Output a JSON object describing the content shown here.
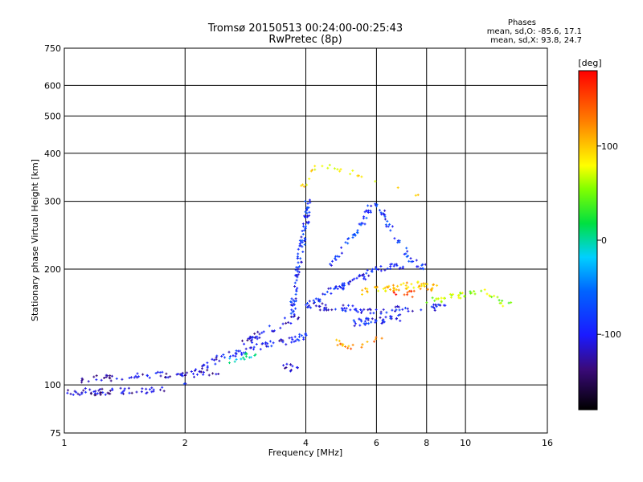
{
  "chart_data": {
    "type": "scatter",
    "title_line1": "Tromsø 20150513 00:24:00-00:25:43",
    "title_line2": "RwPretec (8p)",
    "xlabel": "Frequency [MHz]",
    "ylabel": "Stationary phase Virtual Height [km]",
    "x_scale": "log",
    "y_scale": "log",
    "xlim": [
      1,
      16
    ],
    "ylim": [
      75,
      750
    ],
    "x_ticks": [
      1,
      2,
      4,
      6,
      8,
      10,
      16
    ],
    "x_tick_labels": [
      "1",
      "2",
      "4",
      "6",
      "8",
      "10",
      "16"
    ],
    "y_ticks": [
      75,
      100,
      200,
      300,
      400,
      500,
      600,
      750
    ],
    "y_tick_labels": [
      "75",
      "100",
      "200",
      "300",
      "400",
      "500",
      "600",
      "750"
    ],
    "grid": true,
    "phase_panel": {
      "heading": "Phases",
      "line_o": "mean, sd,O: -85.6, 17.1",
      "line_x": "mean, sd,X:  93.8, 24.7"
    },
    "colorbar": {
      "label": "[deg]",
      "range": [
        -180,
        180
      ],
      "ticks": [
        100,
        0,
        -100
      ],
      "tick_labels": [
        "100",
        "0",
        "-100"
      ]
    },
    "clusters": [
      {
        "trace": [
          [
            1.0,
            96
          ],
          [
            1.3,
            96
          ],
          [
            1.8,
            97
          ]
        ],
        "phase": -125,
        "n": 60
      },
      {
        "trace": [
          [
            1.1,
            103
          ],
          [
            1.4,
            105
          ],
          [
            1.7,
            106
          ],
          [
            2.0,
            107
          ],
          [
            2.4,
            108
          ]
        ],
        "phase": -120,
        "n": 65
      },
      {
        "trace": [
          [
            2.0,
            102
          ],
          [
            2.2,
            110
          ],
          [
            2.4,
            117
          ],
          [
            2.8,
            122
          ],
          [
            3.2,
            127
          ],
          [
            3.6,
            130
          ],
          [
            4.0,
            134
          ]
        ],
        "phase": -110,
        "n": 80
      },
      {
        "trace": [
          [
            2.8,
            128
          ],
          [
            3.0,
            134
          ],
          [
            3.3,
            140
          ],
          [
            3.6,
            147
          ],
          [
            3.8,
            150
          ]
        ],
        "phase": -120,
        "n": 40
      },
      {
        "trace": [
          [
            2.5,
            115
          ],
          [
            2.8,
            118
          ],
          [
            3.0,
            121
          ]
        ],
        "phase": -10,
        "n": 15
      },
      {
        "trace": [
          [
            3.5,
            112
          ],
          [
            3.8,
            110
          ]
        ],
        "phase": -115,
        "n": 12
      },
      {
        "trace": [
          [
            3.7,
            155
          ],
          [
            3.8,
            190
          ],
          [
            3.9,
            230
          ],
          [
            4.0,
            260
          ],
          [
            4.05,
            300
          ]
        ],
        "phase": -100,
        "n": 90
      },
      {
        "trace": [
          [
            4.0,
            160
          ],
          [
            4.6,
            175
          ],
          [
            5.2,
            185
          ],
          [
            6.0,
            200
          ],
          [
            7.0,
            205
          ]
        ],
        "phase": -105,
        "n": 80
      },
      {
        "trace": [
          [
            4.2,
            160
          ],
          [
            5.0,
            158
          ],
          [
            6.0,
            156
          ],
          [
            7.0,
            158
          ],
          [
            9.0,
            160
          ]
        ],
        "phase": -110,
        "n": 70
      },
      {
        "trace": [
          [
            5.2,
            145
          ],
          [
            6.0,
            147
          ],
          [
            7.0,
            150
          ]
        ],
        "phase": -105,
        "n": 40
      },
      {
        "trace": [
          [
            5.5,
            175
          ],
          [
            6.5,
            178
          ],
          [
            7.5,
            182
          ],
          [
            8.5,
            178
          ]
        ],
        "phase": 100,
        "n": 60
      },
      {
        "trace": [
          [
            6.0,
            300
          ],
          [
            6.6,
            250
          ],
          [
            7.2,
            215
          ],
          [
            8.0,
            200
          ]
        ],
        "phase": -100,
        "n": 45
      },
      {
        "trace": [
          [
            4.5,
            200
          ],
          [
            5.0,
            230
          ],
          [
            5.5,
            260
          ],
          [
            5.9,
            300
          ]
        ],
        "phase": -95,
        "n": 40
      },
      {
        "trace": [
          [
            8.0,
            165
          ],
          [
            9.5,
            170
          ],
          [
            11.0,
            175
          ],
          [
            13.0,
            160
          ]
        ],
        "phase": 60,
        "n": 45
      },
      {
        "trace": [
          [
            4.8,
            130
          ],
          [
            5.2,
            125
          ],
          [
            6.2,
            135
          ]
        ],
        "phase": 120,
        "n": 20
      },
      {
        "trace": [
          [
            3.9,
            320
          ],
          [
            4.3,
            380
          ],
          [
            5.5,
            350
          ],
          [
            8.0,
            300
          ]
        ],
        "phase": 90,
        "n": 25
      },
      {
        "trace": [
          [
            6.5,
            170
          ],
          [
            7.0,
            175
          ],
          [
            7.5,
            172
          ]
        ],
        "phase": 160,
        "n": 10
      }
    ]
  }
}
